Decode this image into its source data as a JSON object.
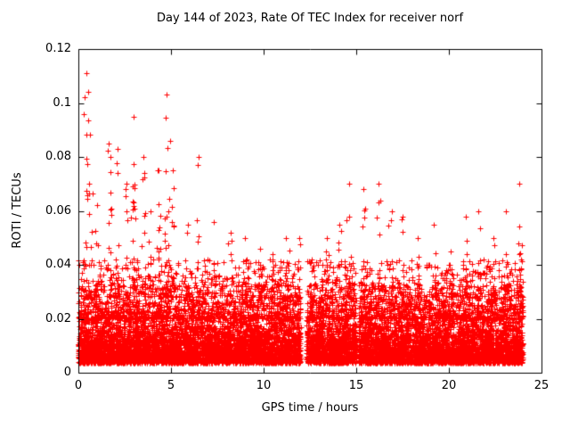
{
  "page": {
    "background": "#ffffff"
  },
  "chart_data": {
    "type": "scatter",
    "title": "Day 144 of 2023, Rate Of TEC Index for receiver norf",
    "xlabel": "GPS time / hours",
    "ylabel": "ROTI / TECUs",
    "xlim": [
      0,
      25
    ],
    "ylim": [
      0,
      0.12
    ],
    "x_ticks": [
      0,
      5,
      10,
      15,
      20,
      25
    ],
    "x_tick_labels": [
      "0",
      "5",
      "10",
      "15",
      "20",
      "25"
    ],
    "y_ticks": [
      0,
      0.02,
      0.04,
      0.06,
      0.08,
      0.1,
      0.12
    ],
    "y_tick_labels": [
      "0",
      "0.02",
      "0.04",
      "0.06",
      "0.08",
      "0.1",
      "0.12"
    ],
    "grid": false,
    "legend": "none",
    "marker": "plus",
    "marker_color": "#ff0000",
    "axis_color": "#000000",
    "data_x_range": [
      0,
      24.05
    ],
    "data_gaps": [
      [
        12.0,
        12.32
      ],
      [
        15.0,
        15.12
      ]
    ],
    "base_band": {
      "y_min": 0.0035,
      "y_exp_mean": 0.0085,
      "y_fold_max": 0.033,
      "points_per_hour": 450,
      "mid_points_per_hour": 70,
      "mid_max": 0.042
    },
    "hourly_max": [
      0.111,
      0.085,
      0.095,
      0.082,
      0.103,
      0.078,
      0.08,
      0.056,
      0.052,
      0.05,
      0.046,
      0.052,
      0.042,
      0.052,
      0.07,
      0.068,
      0.07,
      0.06,
      0.052,
      0.056,
      0.046,
      0.06,
      0.052,
      0.07
    ],
    "bursts": [
      [
        0.45,
        0.111,
        30
      ],
      [
        0.6,
        0.07,
        15
      ],
      [
        1.0,
        0.062,
        12
      ],
      [
        1.65,
        0.085,
        18
      ],
      [
        2.1,
        0.083,
        15
      ],
      [
        2.6,
        0.07,
        12
      ],
      [
        2.98,
        0.095,
        20
      ],
      [
        3.5,
        0.08,
        15
      ],
      [
        3.9,
        0.06,
        10
      ],
      [
        4.35,
        0.075,
        14
      ],
      [
        4.75,
        0.103,
        26
      ],
      [
        5.1,
        0.075,
        14
      ],
      [
        5.9,
        0.055,
        8
      ],
      [
        6.5,
        0.08,
        10
      ],
      [
        7.3,
        0.056,
        8
      ],
      [
        8.2,
        0.052,
        8
      ],
      [
        9.0,
        0.05,
        8
      ],
      [
        9.8,
        0.046,
        6
      ],
      [
        10.5,
        0.044,
        6
      ],
      [
        11.2,
        0.05,
        8
      ],
      [
        11.9,
        0.05,
        8
      ],
      [
        12.6,
        0.042,
        6
      ],
      [
        13.4,
        0.05,
        8
      ],
      [
        14.1,
        0.055,
        8
      ],
      [
        14.6,
        0.07,
        12
      ],
      [
        15.4,
        0.068,
        10
      ],
      [
        16.2,
        0.07,
        10
      ],
      [
        16.9,
        0.06,
        8
      ],
      [
        17.5,
        0.058,
        8
      ],
      [
        18.3,
        0.05,
        8
      ],
      [
        19.2,
        0.055,
        8
      ],
      [
        20.1,
        0.045,
        6
      ],
      [
        20.9,
        0.058,
        8
      ],
      [
        21.6,
        0.06,
        8
      ],
      [
        22.4,
        0.05,
        8
      ],
      [
        23.1,
        0.06,
        10
      ],
      [
        23.8,
        0.07,
        14
      ]
    ]
  }
}
